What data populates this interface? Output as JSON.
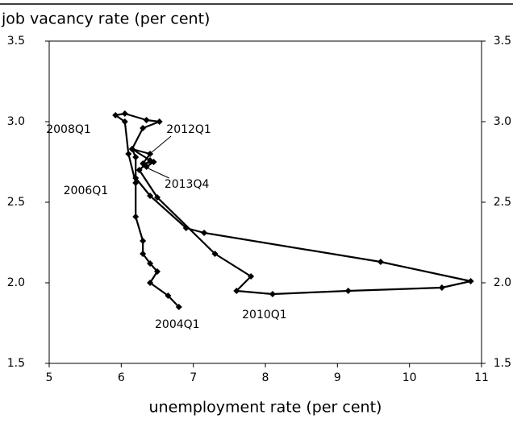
{
  "chart_data": {
    "type": "line",
    "ylabel": "job vacancy rate (per cent)",
    "xlabel": "unemployment rate (per cent)",
    "color": "#000000",
    "x": [
      6.8,
      6.65,
      6.4,
      6.5,
      6.4,
      6.3,
      6.3,
      6.2,
      6.2,
      6.1,
      6.05,
      5.92,
      6.05,
      6.35,
      6.53,
      6.3,
      6.15,
      6.2,
      6.2,
      6.4,
      6.9,
      7.15,
      9.6,
      10.85,
      10.45,
      9.15,
      8.1,
      7.6,
      7.8,
      7.3,
      6.5,
      6.25,
      6.4,
      6.15,
      6.4,
      6.3,
      6.45,
      6.35
    ],
    "values": [
      1.85,
      1.92,
      2.0,
      2.07,
      2.12,
      2.18,
      2.26,
      2.41,
      2.62,
      2.8,
      3.0,
      3.04,
      3.05,
      3.01,
      3.0,
      2.96,
      2.83,
      2.78,
      2.65,
      2.54,
      2.34,
      2.31,
      2.13,
      2.01,
      1.97,
      1.95,
      1.93,
      1.95,
      2.04,
      2.18,
      2.53,
      2.7,
      2.76,
      2.83,
      2.8,
      2.74,
      2.75,
      2.72
    ],
    "xlim": [
      5,
      11
    ],
    "xticks": [
      5,
      6,
      7,
      8,
      9,
      10,
      11
    ],
    "ylim": [
      1.5,
      3.5
    ],
    "yticks": [
      1.5,
      {
        "value": 2,
        "label": "2.0"
      },
      2.5,
      {
        "value": 3,
        "label": "3.0"
      },
      3.5
    ],
    "y2lim": [
      1.5,
      3.5
    ],
    "y2ticks": [
      1.5,
      {
        "value": 2,
        "label": "2.0"
      },
      2.5,
      {
        "value": 3,
        "label": "3.0"
      },
      3.5
    ],
    "annotations": [
      {
        "text": "2004Q1",
        "x": 6.8,
        "y": 1.85
      },
      {
        "text": "2006Q1",
        "x": 6.2,
        "y": 2.62
      },
      {
        "text": "2008Q1",
        "x": 6.05,
        "y": 3.0
      },
      {
        "text": "2010Q1",
        "x": 8.1,
        "y": 1.93
      },
      {
        "text": "2012Q1",
        "x": 6.4,
        "y": 2.8
      },
      {
        "text": "2013Q4",
        "x": 6.35,
        "y": 2.72
      }
    ]
  }
}
